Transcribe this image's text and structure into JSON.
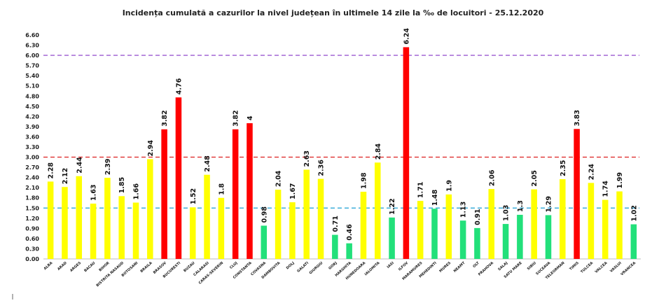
{
  "chart_data": {
    "type": "bar",
    "title": "Incidența cumulată a cazurilor la nivel județean în ultimele 14 zile la ‰ de locuitori - 25.12.2020",
    "categories": [
      "ALBA",
      "ARAD",
      "ARGES",
      "BACAU",
      "BIHOR",
      "BISTRITA NASAUD",
      "BOTOSANI",
      "BRAILA",
      "BRASOV",
      "BUCURESTI",
      "BUZAU",
      "CALARASI",
      "CARAS-SEVERIN",
      "CLUJ",
      "CONSTANTA",
      "COVASNA",
      "DAMBOVITA",
      "DOLJ",
      "GALATI",
      "GIURGIU",
      "GORJ",
      "HARGHITA",
      "HUNEDOARA",
      "IALOMITA",
      "IASI",
      "ILFOV",
      "MARAMURES",
      "MEHEDINTI",
      "MURES",
      "NEAMT",
      "OLT",
      "PRAHOVA",
      "SALAJ",
      "SATU MARE",
      "SIBIU",
      "SUCEAVA",
      "TELEORMAN",
      "TIMIS",
      "TULCEA",
      "VALCEA",
      "VASLUI",
      "VRANCEA"
    ],
    "values": [
      2.28,
      2.12,
      2.44,
      1.63,
      2.39,
      1.85,
      1.66,
      2.94,
      3.82,
      4.76,
      1.52,
      2.48,
      1.8,
      3.82,
      4,
      0.98,
      2.04,
      1.67,
      2.63,
      2.36,
      0.71,
      0.46,
      1.98,
      2.84,
      1.22,
      6.24,
      1.71,
      1.48,
      1.9,
      1.13,
      0.91,
      2.06,
      1.03,
      1.3,
      2.05,
      1.29,
      2.35,
      3.83,
      2.24,
      1.74,
      1.99,
      1.02
    ],
    "value_labels": [
      "2.28",
      "2.12",
      "2.44",
      "1.63",
      "2.39",
      "1.85",
      "1.66",
      "2.94",
      "3.82",
      "4.76",
      "1.52",
      "2.48",
      "1.8",
      "3.82",
      "4",
      "0.98",
      "2.04",
      "1.67",
      "2.63",
      "2.36",
      "0.71",
      "0.46",
      "1.98",
      "2.84",
      "1.22",
      "6.24",
      "1.71",
      "1.48",
      "1.9",
      "1.13",
      "0.91",
      "2.06",
      "1.03",
      "1.3",
      "2.05",
      "1.29",
      "2.35",
      "3.83",
      "2.24",
      "1.74",
      "1.99",
      "1.02"
    ],
    "colors": {
      "low": "#22e07a",
      "mid": "#ffff00",
      "high": "#ff0000"
    },
    "thresholds": [
      {
        "value": 6.0,
        "color": "#9b59d0"
      },
      {
        "value": 3.0,
        "color": "#e03030"
      },
      {
        "value": 1.5,
        "color": "#30a8d8"
      }
    ],
    "ylim": [
      0,
      6.6
    ],
    "yticks": [
      "0.00",
      "0.30",
      "0.60",
      "0.90",
      "1.20",
      "1.50",
      "1.80",
      "2.10",
      "2.40",
      "2.70",
      "3.00",
      "3.30",
      "3.60",
      "3.90",
      "4.20",
      "4.50",
      "4.80",
      "5.10",
      "5.40",
      "5.70",
      "6.00",
      "6.30",
      "6.60"
    ],
    "grid": false,
    "legend": "none",
    "xlabel": "",
    "ylabel": ""
  }
}
